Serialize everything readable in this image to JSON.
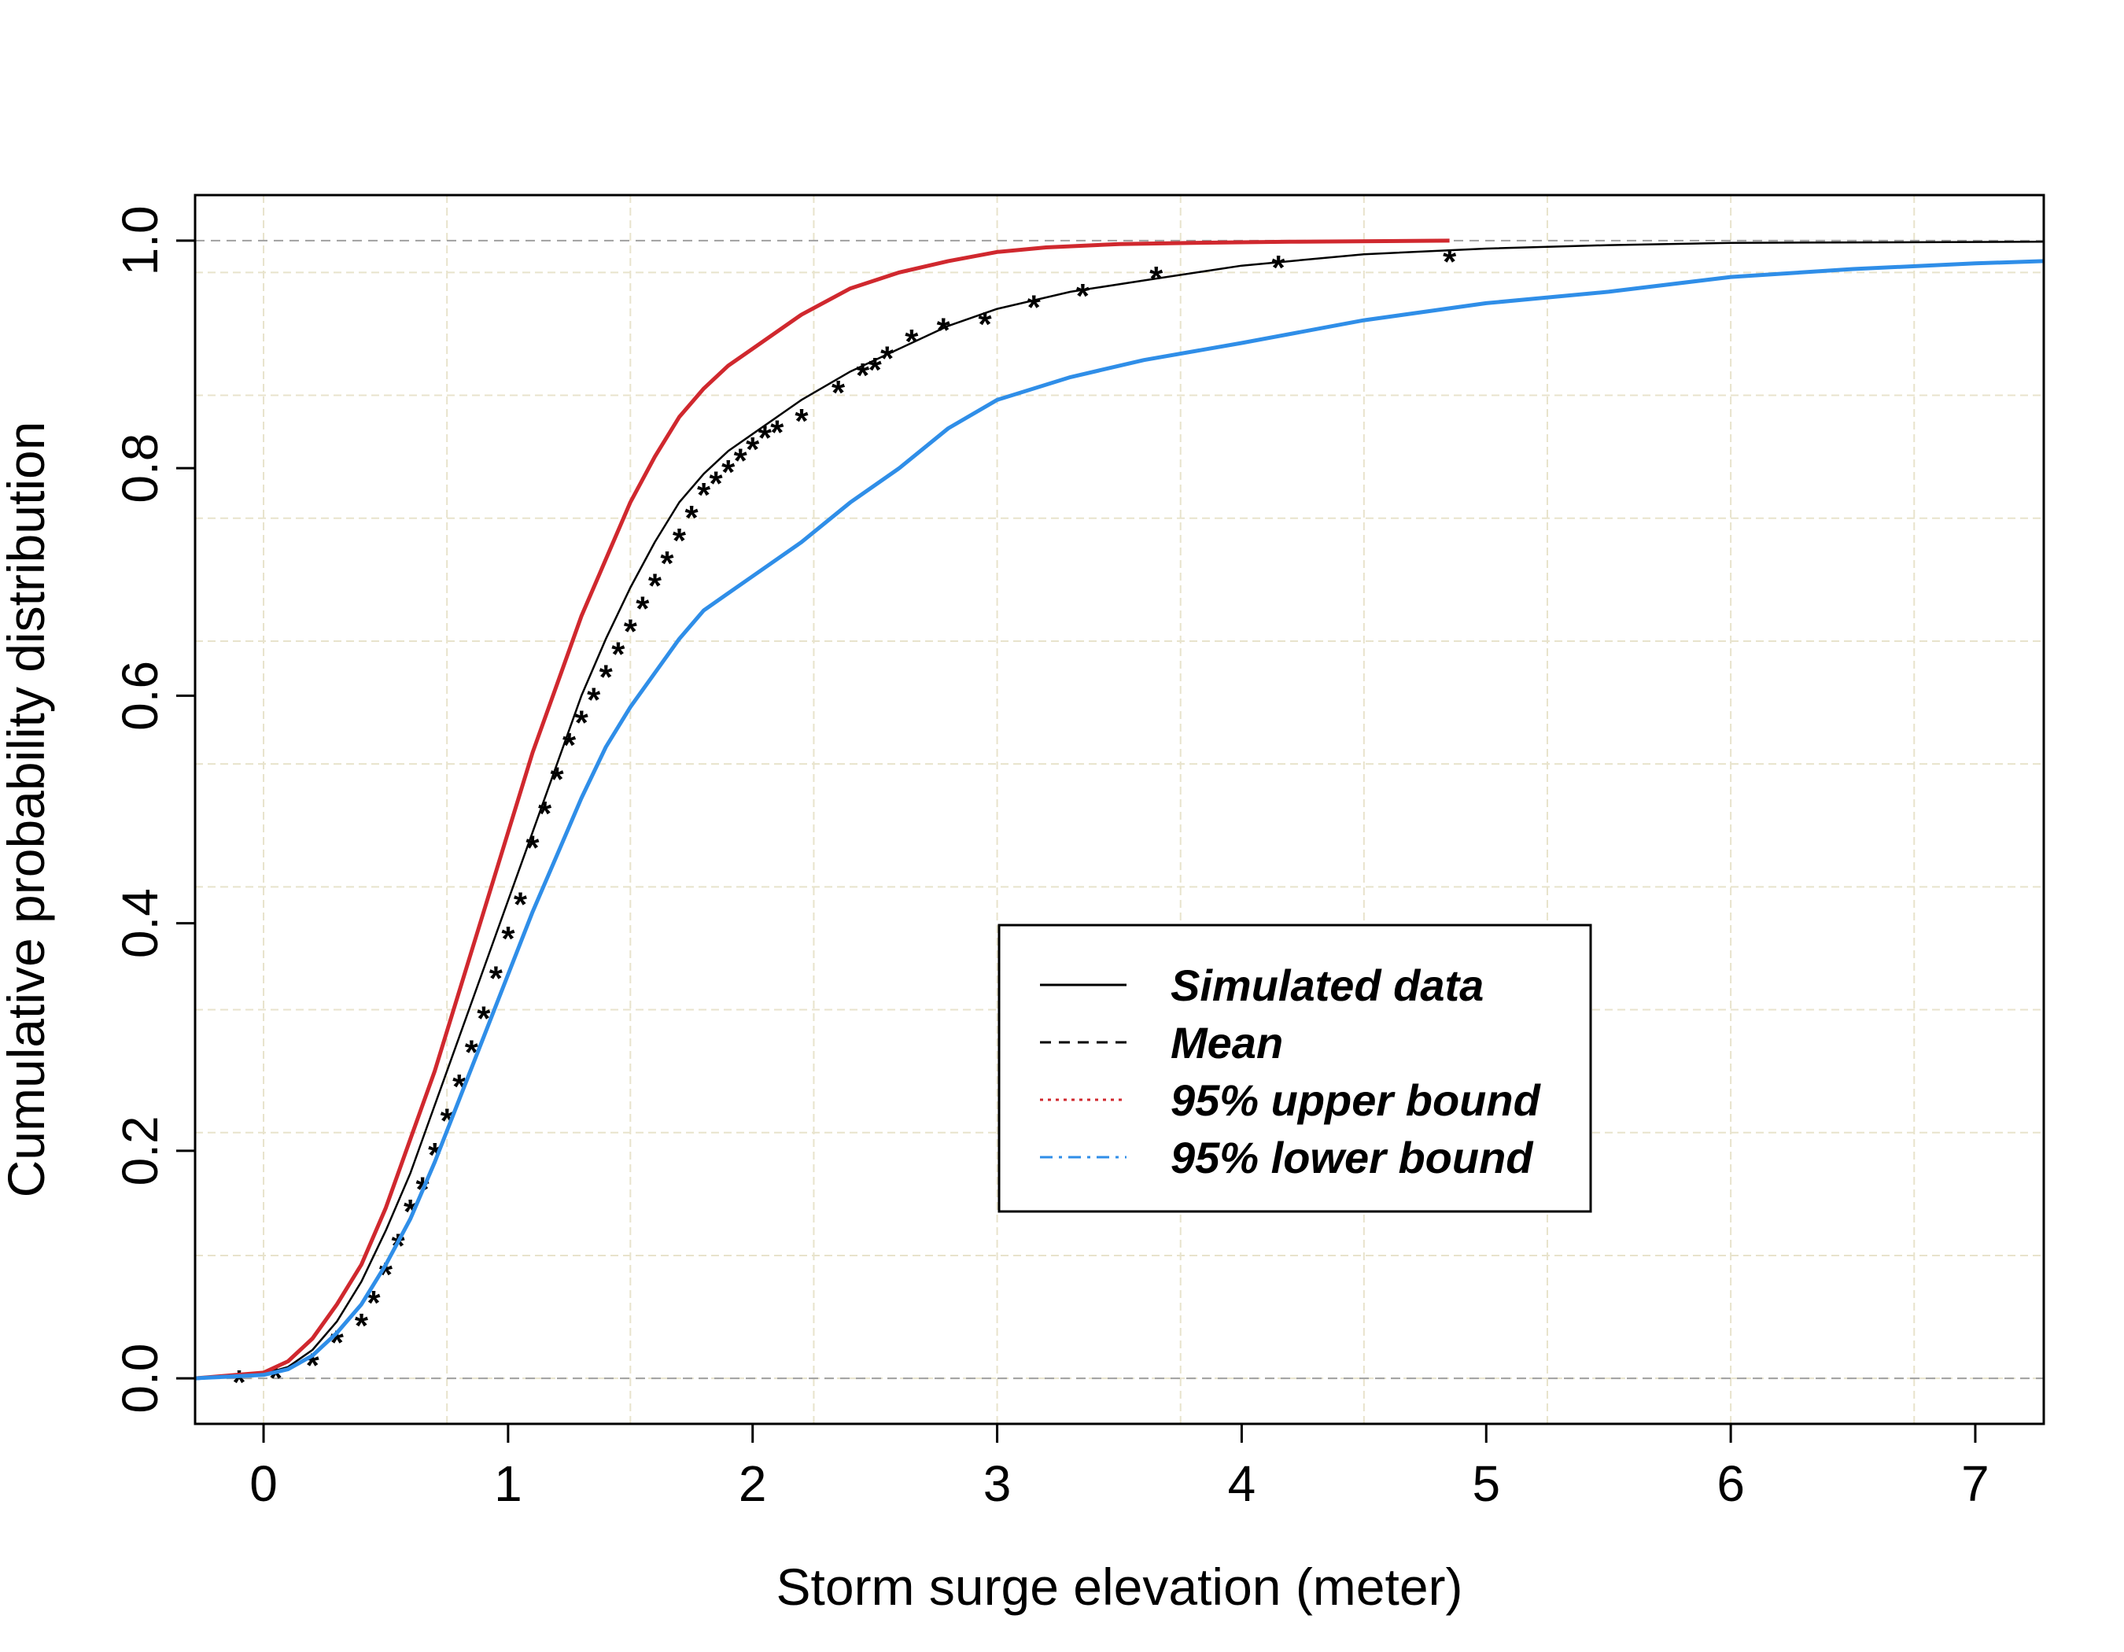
{
  "chart_data": {
    "type": "line",
    "title": "",
    "xlabel": "Storm surge elevation (meter)",
    "ylabel": "Cumulative probability distribution",
    "xlim": [
      -0.28,
      7.28
    ],
    "ylim": [
      -0.04,
      1.04
    ],
    "x_ticks": [
      "0",
      "1",
      "2",
      "3",
      "4",
      "5",
      "6",
      "7"
    ],
    "y_ticks": [
      "0.0",
      "0.2",
      "0.4",
      "0.6",
      "0.8",
      "1.0"
    ],
    "grid": true,
    "reference_lines": [
      0,
      1
    ],
    "legend_position": "center-right",
    "series": [
      {
        "name": "Simulated data",
        "color": "#000000",
        "style": "solid",
        "x": [
          -0.28,
          0.0,
          0.1,
          0.2,
          0.3,
          0.4,
          0.5,
          0.6,
          0.7,
          0.8,
          0.9,
          1.0,
          1.1,
          1.2,
          1.3,
          1.4,
          1.5,
          1.6,
          1.7,
          1.8,
          1.9,
          2.0,
          2.2,
          2.4,
          2.6,
          2.8,
          3.0,
          3.3,
          3.6,
          4.0,
          4.5,
          5.0,
          5.5,
          6.0,
          7.28
        ],
        "y": [
          0.0,
          0.004,
          0.01,
          0.025,
          0.05,
          0.085,
          0.13,
          0.18,
          0.24,
          0.3,
          0.36,
          0.42,
          0.48,
          0.54,
          0.6,
          0.65,
          0.695,
          0.735,
          0.77,
          0.795,
          0.815,
          0.83,
          0.86,
          0.885,
          0.905,
          0.925,
          0.94,
          0.955,
          0.965,
          0.978,
          0.988,
          0.993,
          0.996,
          0.998,
          0.999
        ]
      },
      {
        "name": "Mean",
        "color": "#000000",
        "style": "points",
        "x": [
          -0.1,
          0.05,
          0.2,
          0.3,
          0.4,
          0.45,
          0.5,
          0.55,
          0.6,
          0.65,
          0.7,
          0.75,
          0.8,
          0.85,
          0.9,
          0.95,
          1.0,
          1.05,
          1.1,
          1.15,
          1.2,
          1.25,
          1.3,
          1.35,
          1.4,
          1.45,
          1.5,
          1.55,
          1.6,
          1.65,
          1.7,
          1.75,
          1.8,
          1.85,
          1.9,
          1.95,
          2.0,
          2.05,
          2.1,
          2.2,
          2.35,
          2.45,
          2.5,
          2.55,
          2.65,
          2.78,
          2.95,
          3.15,
          3.35,
          3.65,
          4.15,
          4.85
        ],
        "y": [
          0.0,
          0.004,
          0.015,
          0.035,
          0.05,
          0.07,
          0.095,
          0.12,
          0.15,
          0.17,
          0.2,
          0.23,
          0.26,
          0.29,
          0.32,
          0.355,
          0.39,
          0.42,
          0.47,
          0.5,
          0.53,
          0.56,
          0.58,
          0.6,
          0.62,
          0.64,
          0.66,
          0.68,
          0.7,
          0.72,
          0.74,
          0.76,
          0.78,
          0.79,
          0.8,
          0.81,
          0.82,
          0.83,
          0.835,
          0.845,
          0.87,
          0.885,
          0.89,
          0.9,
          0.915,
          0.925,
          0.93,
          0.945,
          0.955,
          0.97,
          0.98,
          0.985
        ]
      },
      {
        "name": "95% upper bound",
        "color": "#d0282e",
        "style": "solid",
        "x": [
          -0.28,
          0.0,
          0.1,
          0.2,
          0.3,
          0.4,
          0.5,
          0.6,
          0.7,
          0.8,
          0.9,
          1.0,
          1.1,
          1.2,
          1.3,
          1.4,
          1.5,
          1.6,
          1.7,
          1.8,
          1.9,
          2.0,
          2.2,
          2.4,
          2.6,
          2.8,
          3.0,
          3.2,
          3.5,
          3.8,
          4.2,
          4.85
        ],
        "y": [
          0.0,
          0.005,
          0.015,
          0.035,
          0.065,
          0.1,
          0.15,
          0.21,
          0.27,
          0.34,
          0.41,
          0.48,
          0.55,
          0.61,
          0.67,
          0.72,
          0.77,
          0.81,
          0.845,
          0.87,
          0.89,
          0.905,
          0.935,
          0.958,
          0.972,
          0.982,
          0.99,
          0.994,
          0.997,
          0.998,
          0.999,
          1.0
        ]
      },
      {
        "name": "95% lower bound",
        "color": "#2f8ee8",
        "style": "solid",
        "x": [
          -0.28,
          0.0,
          0.1,
          0.2,
          0.3,
          0.4,
          0.5,
          0.6,
          0.7,
          0.8,
          0.9,
          1.0,
          1.1,
          1.2,
          1.3,
          1.4,
          1.5,
          1.6,
          1.7,
          1.8,
          1.9,
          2.0,
          2.2,
          2.4,
          2.6,
          2.8,
          3.0,
          3.3,
          3.6,
          4.0,
          4.5,
          5.0,
          5.5,
          6.0,
          6.5,
          7.0,
          7.28
        ],
        "y": [
          0.0,
          0.003,
          0.008,
          0.02,
          0.04,
          0.065,
          0.1,
          0.14,
          0.19,
          0.245,
          0.3,
          0.355,
          0.41,
          0.46,
          0.51,
          0.555,
          0.59,
          0.62,
          0.65,
          0.675,
          0.69,
          0.705,
          0.735,
          0.77,
          0.8,
          0.835,
          0.86,
          0.88,
          0.895,
          0.91,
          0.93,
          0.945,
          0.955,
          0.968,
          0.975,
          0.98,
          0.982
        ]
      }
    ],
    "legend": [
      {
        "label": "Simulated data",
        "color": "#000000",
        "dash": ""
      },
      {
        "label": "Mean",
        "color": "#000000",
        "dash": "14,10"
      },
      {
        "label": "95% upper bound",
        "color": "#d0282e",
        "dash": "4,6"
      },
      {
        "label": "95% lower bound",
        "color": "#2f8ee8",
        "dash": "16,8,4,8"
      }
    ]
  }
}
